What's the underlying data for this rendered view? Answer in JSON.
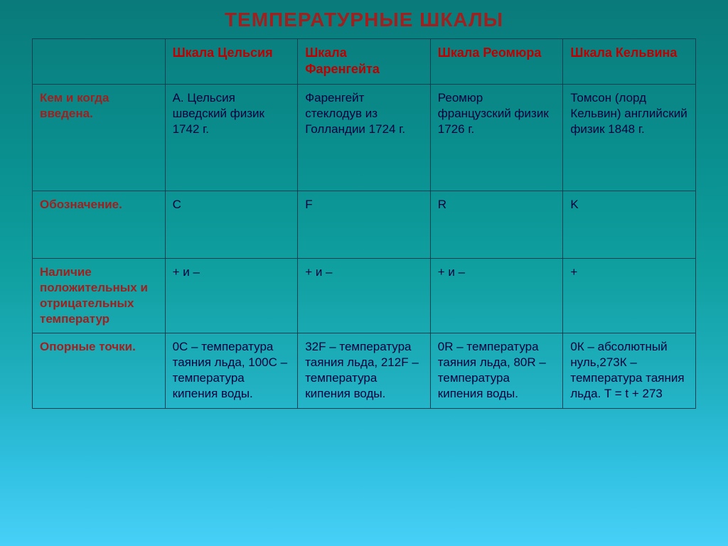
{
  "title": "ТЕМПЕРАТУРНЫЕ ШКАЛЫ",
  "headers": {
    "c1": "Шкала Цельсия",
    "c2": "Шкала Фаренгейта",
    "c3": "Шкала Реомюра",
    "c4": "Шкала Кельвина"
  },
  "rows": {
    "r1": {
      "label": "Кем и когда введена.",
      "c1": "А. Цельсия шведский физик 1742 г.",
      "c2": "Фаренгейт стеклодув из Голландии 1724 г.",
      "c3": "Реомюр французский физик 1726 г.",
      "c4": "Томсон (лорд Кельвин) английский физик 1848 г."
    },
    "r2": {
      "label": "Обозначение.",
      "c1": "C",
      "c2": "F",
      "c3": "R",
      "c4": "K"
    },
    "r3": {
      "label": "Наличие положительных и отрицательных температур",
      "c1": "+ и –",
      "c2": "+ и –",
      "c3": "+ и –",
      "c4": "+"
    },
    "r4": {
      "label": "Опорные точки.",
      "c1": "0С – температура таяния льда, 100С – температура кипения воды.",
      "c2": "32F – температура таяния льда, 212F – температура кипения воды.",
      "c3": "0R – температура таяния льда, 80R – температура кипения воды.",
      "c4": "0К – абсолютный нуль,273К – температура таяния льда. T = t + 273"
    }
  }
}
